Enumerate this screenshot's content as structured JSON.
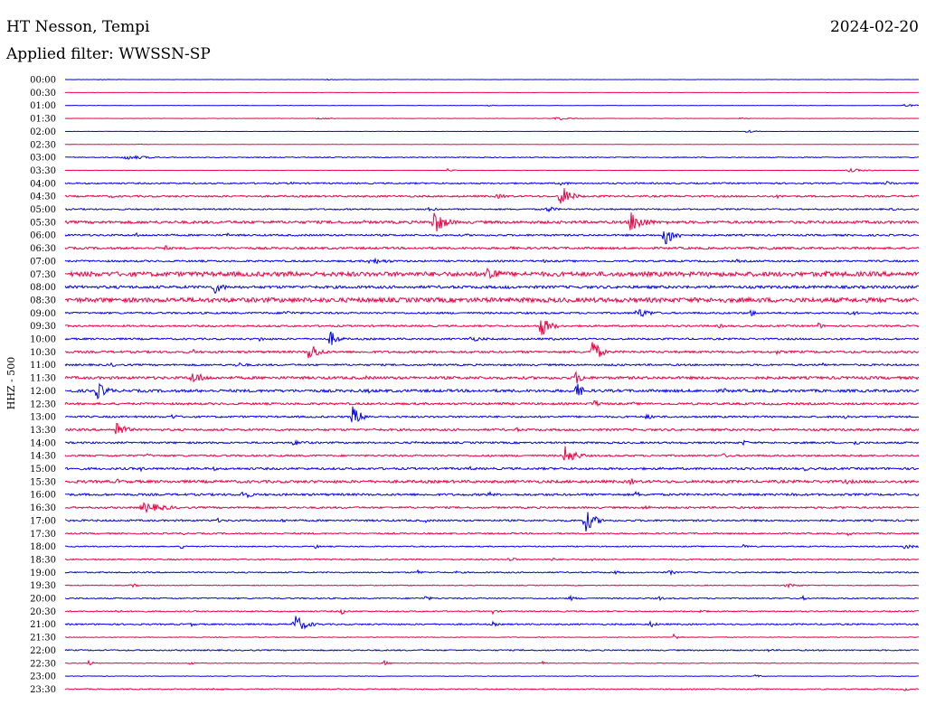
{
  "header": {
    "station": "HT Nesson, Tempi",
    "date": "2024-02-20",
    "filter": "Applied filter: WWSSN-SP"
  },
  "chart_data": {
    "type": "line",
    "subtype": "helicorder",
    "ylabel": "HHZ - 500",
    "colors": {
      "odd_rows": "#0000ee",
      "even_rows": "#ee0044"
    },
    "rows": [
      {
        "label": "00:00",
        "noise": 0.15,
        "events": [
          [
            110,
            0.6,
            20
          ],
          [
            360,
            0.7,
            15
          ]
        ]
      },
      {
        "label": "00:30",
        "noise": 0.12,
        "events": []
      },
      {
        "label": "01:00",
        "noise": 0.15,
        "events": [
          [
            540,
            0.7,
            15
          ],
          [
            1000,
            1.8,
            12
          ]
        ]
      },
      {
        "label": "01:30",
        "noise": 0.2,
        "events": [
          [
            352,
            1.2,
            15
          ],
          [
            615,
            2.0,
            18
          ],
          [
            818,
            0.8,
            10
          ]
        ]
      },
      {
        "label": "02:00",
        "noise": 0.15,
        "events": [
          [
            826,
            2.5,
            8
          ]
        ]
      },
      {
        "label": "02:30",
        "noise": 0.12,
        "events": [
          [
            150,
            0.8,
            10
          ]
        ]
      },
      {
        "label": "03:00",
        "noise": 0.5,
        "events": [
          [
            140,
            2.5,
            30
          ]
        ]
      },
      {
        "label": "03:30",
        "noise": 0.2,
        "events": [
          [
            495,
            2.0,
            6
          ],
          [
            940,
            2.0,
            20
          ]
        ]
      },
      {
        "label": "04:00",
        "noise": 0.8,
        "events": [
          [
            320,
            1.5,
            20
          ],
          [
            620,
            2.5,
            12
          ],
          [
            700,
            1.5,
            10
          ],
          [
            980,
            2.5,
            15
          ]
        ]
      },
      {
        "label": "04:30",
        "noise": 1.0,
        "events": [
          [
            122,
            2.0,
            12
          ],
          [
            550,
            2.5,
            20
          ],
          [
            620,
            14.0,
            10
          ],
          [
            860,
            2.0,
            12
          ]
        ]
      },
      {
        "label": "05:00",
        "noise": 0.8,
        "events": [
          [
            475,
            3.0,
            8
          ],
          [
            605,
            4.0,
            10
          ],
          [
            985,
            2.0,
            8
          ]
        ]
      },
      {
        "label": "05:30",
        "noise": 1.5,
        "events": [
          [
            480,
            14.0,
            12
          ],
          [
            698,
            13.0,
            14
          ],
          [
            400,
            2.5,
            15
          ],
          [
            735,
            2.5,
            12
          ]
        ]
      },
      {
        "label": "06:00",
        "noise": 1.0,
        "events": [
          [
            735,
            14.0,
            10
          ],
          [
            250,
            3.0,
            6
          ],
          [
            150,
            3.0,
            5
          ],
          [
            515,
            2.0,
            6
          ]
        ]
      },
      {
        "label": "06:30",
        "noise": 1.2,
        "events": [
          [
            182,
            3.5,
            8
          ],
          [
            565,
            3.0,
            5
          ],
          [
            850,
            3.0,
            10
          ]
        ]
      },
      {
        "label": "07:00",
        "noise": 1.0,
        "events": [
          [
            410,
            3.5,
            25
          ],
          [
            600,
            2.0,
            10
          ],
          [
            815,
            2.0,
            10
          ]
        ]
      },
      {
        "label": "07:30",
        "noise": 2.5,
        "events": [
          [
            540,
            14.0,
            10
          ],
          [
            320,
            3.5,
            8
          ],
          [
            100,
            3.5,
            12
          ],
          [
            910,
            3.5,
            40
          ]
        ]
      },
      {
        "label": "08:00",
        "noise": 1.5,
        "events": [
          [
            237,
            8.0,
            10
          ],
          [
            560,
            2.5,
            10
          ],
          [
            990,
            2.5,
            12
          ]
        ]
      },
      {
        "label": "08:30",
        "noise": 2.5,
        "events": [
          [
            200,
            3.0,
            40
          ],
          [
            800,
            3.0,
            20
          ]
        ]
      },
      {
        "label": "09:00",
        "noise": 1.0,
        "events": [
          [
            705,
            6.0,
            15
          ],
          [
            830,
            4.0,
            8
          ],
          [
            315,
            3.0,
            15
          ],
          [
            940,
            4.0,
            8
          ]
        ]
      },
      {
        "label": "09:30",
        "noise": 1.0,
        "events": [
          [
            598,
            13.0,
            10
          ],
          [
            905,
            4.0,
            6
          ],
          [
            795,
            2.5,
            10
          ]
        ]
      },
      {
        "label": "10:00",
        "noise": 1.0,
        "events": [
          [
            365,
            10.0,
            8
          ],
          [
            287,
            3.0,
            8
          ],
          [
            520,
            3.0,
            20
          ],
          [
            610,
            2.0,
            10
          ]
        ]
      },
      {
        "label": "10:30",
        "noise": 1.2,
        "events": [
          [
            342,
            12.0,
            10
          ],
          [
            655,
            16.0,
            8
          ],
          [
            214,
            3.0,
            5
          ],
          [
            858,
            3.0,
            8
          ]
        ]
      },
      {
        "label": "11:00",
        "noise": 1.0,
        "events": [
          [
            122,
            3.0,
            8
          ],
          [
            262,
            3.0,
            15
          ],
          [
            680,
            2.0,
            8
          ],
          [
            908,
            3.0,
            6
          ]
        ]
      },
      {
        "label": "11:30",
        "noise": 1.5,
        "events": [
          [
            213,
            7.0,
            15
          ],
          [
            637,
            8.0,
            8
          ],
          [
            405,
            3.0,
            6
          ]
        ]
      },
      {
        "label": "12:00",
        "noise": 1.5,
        "events": [
          [
            107,
            10.0,
            12
          ],
          [
            637,
            10.0,
            8
          ],
          [
            407,
            3.0,
            6
          ],
          [
            800,
            3.0,
            10
          ]
        ]
      },
      {
        "label": "12:30",
        "noise": 1.2,
        "events": [
          [
            655,
            5.0,
            10
          ],
          [
            550,
            2.5,
            15
          ],
          [
            700,
            2.0,
            10
          ]
        ]
      },
      {
        "label": "13:00",
        "noise": 1.0,
        "events": [
          [
            390,
            12.0,
            10
          ],
          [
            190,
            3.0,
            10
          ],
          [
            715,
            3.0,
            15
          ],
          [
            935,
            3.0,
            8
          ]
        ]
      },
      {
        "label": "13:30",
        "noise": 1.2,
        "events": [
          [
            128,
            11.0,
            10
          ],
          [
            570,
            3.0,
            8
          ],
          [
            835,
            3.0,
            8
          ]
        ]
      },
      {
        "label": "14:00",
        "noise": 1.0,
        "events": [
          [
            325,
            3.0,
            20
          ],
          [
            458,
            2.0,
            8
          ],
          [
            822,
            3.0,
            8
          ],
          [
            945,
            3.0,
            8
          ]
        ]
      },
      {
        "label": "14:30",
        "noise": 1.0,
        "events": [
          [
            625,
            11.0,
            12
          ],
          [
            162,
            3.0,
            6
          ],
          [
            800,
            2.5,
            12
          ]
        ]
      },
      {
        "label": "15:00",
        "noise": 1.2,
        "events": [
          [
            155,
            3.0,
            6
          ],
          [
            235,
            3.0,
            6
          ],
          [
            520,
            2.5,
            10
          ],
          [
            890,
            2.5,
            8
          ]
        ]
      },
      {
        "label": "15:30",
        "noise": 1.5,
        "events": [
          [
            130,
            3.0,
            10
          ],
          [
            697,
            5.0,
            6
          ],
          [
            935,
            3.0,
            15
          ]
        ]
      },
      {
        "label": "16:00",
        "noise": 1.2,
        "events": [
          [
            268,
            5.0,
            12
          ],
          [
            540,
            4.0,
            6
          ],
          [
            703,
            4.0,
            6
          ],
          [
            875,
            3.0,
            8
          ]
        ]
      },
      {
        "label": "16:30",
        "noise": 1.0,
        "events": [
          [
            160,
            6.0,
            25
          ],
          [
            712,
            3.0,
            10
          ],
          [
            928,
            2.5,
            10
          ]
        ]
      },
      {
        "label": "17:00",
        "noise": 1.0,
        "events": [
          [
            647,
            14.0,
            10
          ],
          [
            240,
            3.0,
            6
          ],
          [
            312,
            3.0,
            6
          ],
          [
            470,
            2.5,
            8
          ]
        ]
      },
      {
        "label": "17:30",
        "noise": 0.8,
        "events": [
          [
            200,
            2.0,
            8
          ],
          [
            937,
            3.0,
            6
          ]
        ]
      },
      {
        "label": "18:00",
        "noise": 0.6,
        "events": [
          [
            200,
            3.0,
            6
          ],
          [
            348,
            3.0,
            5
          ],
          [
            822,
            3.0,
            6
          ],
          [
            1000,
            3.0,
            12
          ]
        ]
      },
      {
        "label": "18:30",
        "noise": 0.7,
        "events": [
          [
            563,
            4.0,
            6
          ],
          [
            610,
            2.0,
            8
          ],
          [
            655,
            2.0,
            8
          ]
        ]
      },
      {
        "label": "19:00",
        "noise": 0.7,
        "events": [
          [
            462,
            3.0,
            6
          ],
          [
            505,
            2.0,
            5
          ],
          [
            740,
            3.0,
            8
          ],
          [
            680,
            2.0,
            10
          ]
        ]
      },
      {
        "label": "19:30",
        "noise": 0.5,
        "events": [
          [
            145,
            3.0,
            6
          ],
          [
            870,
            2.5,
            15
          ]
        ]
      },
      {
        "label": "20:00",
        "noise": 0.7,
        "events": [
          [
            470,
            3.0,
            8
          ],
          [
            630,
            3.0,
            8
          ],
          [
            728,
            3.0,
            6
          ],
          [
            888,
            2.5,
            6
          ]
        ]
      },
      {
        "label": "20:30",
        "noise": 0.7,
        "events": [
          [
            377,
            4.0,
            6
          ],
          [
            545,
            3.0,
            6
          ],
          [
            775,
            3.0,
            6
          ],
          [
            128,
            2.5,
            6
          ]
        ]
      },
      {
        "label": "21:00",
        "noise": 0.8,
        "events": [
          [
            326,
            11.0,
            12
          ],
          [
            210,
            3.0,
            6
          ],
          [
            545,
            3.0,
            6
          ],
          [
            718,
            4.0,
            8
          ]
        ]
      },
      {
        "label": "21:30",
        "noise": 0.4,
        "events": [
          [
            745,
            4.0,
            6
          ]
        ]
      },
      {
        "label": "22:00",
        "noise": 0.7,
        "events": [
          [
            850,
            2.0,
            6
          ]
        ]
      },
      {
        "label": "22:30",
        "noise": 0.4,
        "events": [
          [
            98,
            3.0,
            6
          ],
          [
            208,
            2.5,
            6
          ],
          [
            425,
            3.0,
            6
          ],
          [
            600,
            2.0,
            6
          ]
        ]
      },
      {
        "label": "23:00",
        "noise": 0.3,
        "events": [
          [
            835,
            2.0,
            6
          ]
        ]
      },
      {
        "label": "23:30",
        "noise": 0.6,
        "events": [
          [
            237,
            2.5,
            10
          ],
          [
            1000,
            2.0,
            8
          ]
        ]
      }
    ]
  }
}
